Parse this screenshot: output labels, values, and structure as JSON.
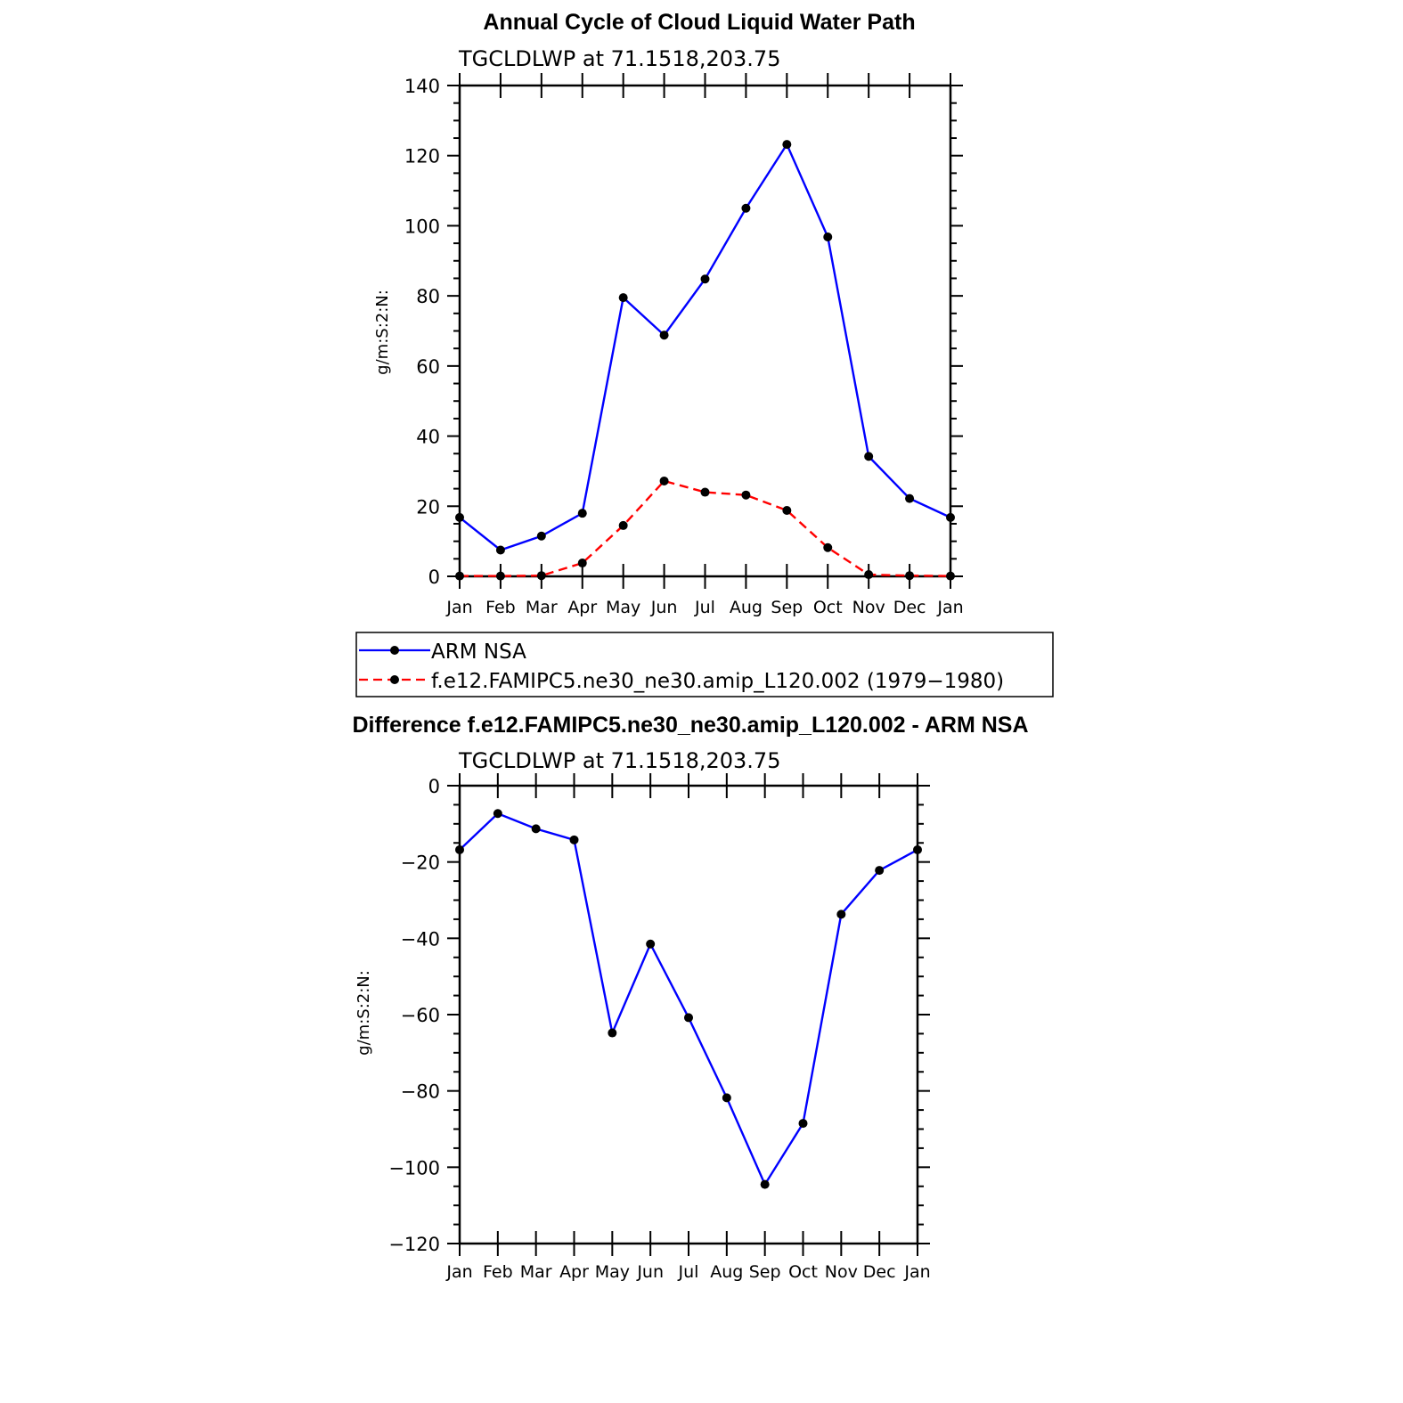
{
  "chart_data": [
    {
      "type": "line",
      "title": "Annual Cycle of Cloud Liquid Water Path",
      "subtitle": "TGCLDLWP  at  71.1518,203.75",
      "ylabel": "g/m:S:2:N:",
      "xlabel": "",
      "categories": [
        "Jan",
        "Feb",
        "Mar",
        "Apr",
        "May",
        "Jun",
        "Jul",
        "Aug",
        "Sep",
        "Oct",
        "Nov",
        "Dec",
        "Jan"
      ],
      "ylim": [
        0,
        140
      ],
      "yticks": [
        "0",
        "20",
        "40",
        "60",
        "80",
        "100",
        "120",
        "140"
      ],
      "series": [
        {
          "name": "ARM NSA",
          "color": "#0000ff",
          "dash": "solid",
          "values": [
            16.8,
            7.5,
            11.5,
            18,
            79.5,
            68.8,
            84.8,
            105,
            123.2,
            96.8,
            34.2,
            22.2,
            16.8
          ]
        },
        {
          "name": "f.e12.FAMIPC5.ne30_ne30.amip_L120.002 (1979−1980)",
          "color": "#ff0000",
          "dash": "dashed",
          "values": [
            0.1,
            0.1,
            0.2,
            3.8,
            14.5,
            27.2,
            24,
            23.2,
            18.8,
            8.2,
            0.5,
            0.2,
            0.1
          ]
        }
      ],
      "legend_position": "below"
    },
    {
      "type": "line",
      "title": "Difference f.e12.FAMIPC5.ne30_ne30.amip_L120.002 - ARM NSA",
      "subtitle": "TGCLDLWP  at  71.1518,203.75",
      "ylabel": "g/m:S:2:N:",
      "xlabel": "",
      "categories": [
        "Jan",
        "Feb",
        "Mar",
        "Apr",
        "May",
        "Jun",
        "Jul",
        "Aug",
        "Sep",
        "Oct",
        "Nov",
        "Dec",
        "Jan"
      ],
      "ylim": [
        -120,
        0
      ],
      "yticks": [
        "0",
        "−20",
        "−40",
        "−60",
        "−80",
        "−100",
        "−120"
      ],
      "series": [
        {
          "name": "Difference",
          "color": "#0000ff",
          "dash": "solid",
          "values": [
            -16.8,
            -7.3,
            -11.3,
            -14.2,
            -64.8,
            -41.5,
            -60.8,
            -81.8,
            -104.5,
            -88.5,
            -33.7,
            -22.2,
            -16.8
          ]
        }
      ]
    }
  ]
}
